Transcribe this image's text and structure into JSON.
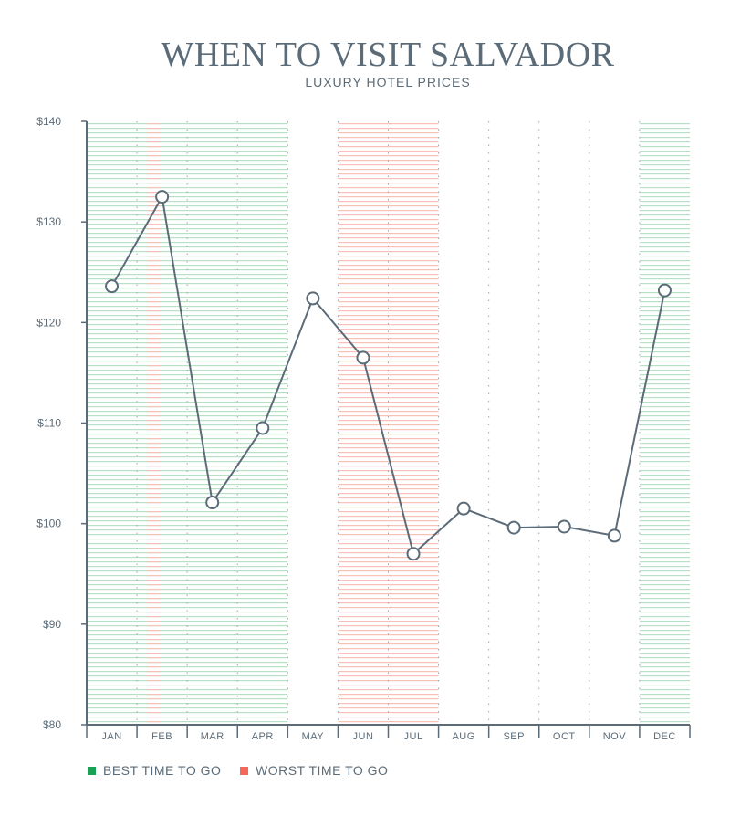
{
  "title": "WHEN TO VISIT SALVADOR",
  "subtitle": "LUXURY HOTEL PRICES",
  "colors": {
    "line": "#5b6b78",
    "best": "#1aa154",
    "worst": "#f4685c",
    "best_stripe": "#b8e0c4",
    "worst_stripe": "#f7c0b8"
  },
  "legend": {
    "best_label": "BEST TIME TO GO",
    "worst_label": "WORST TIME TO GO"
  },
  "chart_data": {
    "type": "line",
    "title": "WHEN TO VISIT SALVADOR",
    "subtitle": "LUXURY HOTEL PRICES",
    "categories": [
      "JAN",
      "FEB",
      "MAR",
      "APR",
      "MAY",
      "JUN",
      "JUL",
      "AUG",
      "SEP",
      "OCT",
      "NOV",
      "DEC"
    ],
    "values": [
      123.6,
      132.5,
      102.1,
      109.5,
      122.4,
      116.5,
      97.0,
      101.5,
      99.6,
      99.7,
      98.8,
      123.2
    ],
    "ylim": [
      80,
      140
    ],
    "yticks": [
      80,
      90,
      100,
      110,
      120,
      130,
      140
    ],
    "ytick_labels": [
      "$80",
      "$90",
      "$100",
      "$110",
      "$120",
      "$130",
      "$140"
    ],
    "best_months": [
      "JAN",
      "FEB",
      "MAR",
      "APR",
      "DEC"
    ],
    "worst_months": [
      "FEB",
      "JUN",
      "JUL"
    ],
    "grid": "vertical-dotted",
    "legend_position": "bottom-left"
  }
}
